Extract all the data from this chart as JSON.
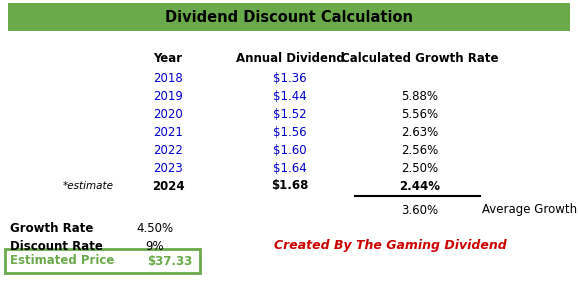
{
  "title": "Dividend Discount Calculation",
  "title_bg": "#6aaa4b",
  "title_color": "#000000",
  "header_year": "Year",
  "header_dividend": "Annual Dividend",
  "header_growth": "Calculated Growth Rate",
  "years": [
    "2018",
    "2019",
    "2020",
    "2021",
    "2022",
    "2023",
    "2024"
  ],
  "dividends": [
    "$1.36",
    "$1.44",
    "$1.52",
    "$1.56",
    "$1.60",
    "$1.64",
    "$1.68"
  ],
  "growth_rates": [
    "",
    "5.88%",
    "5.56%",
    "2.63%",
    "2.56%",
    "2.50%",
    "2.44%"
  ],
  "estimate_label": "*estimate",
  "avg_growth_value": "3.60%",
  "avg_growth_label": "Average Growth",
  "growth_rate_label": "Growth Rate",
  "growth_rate_value": "4.50%",
  "discount_rate_label": "Discount Rate",
  "discount_rate_value": "9%",
  "estimated_price_label": "Estimated Price",
  "estimated_price_value": "$37.33",
  "watermark": "Created By The Gaming Dividend",
  "watermark_color": "#cc0000",
  "year_color": "#0000cc",
  "dividend_color": "#0000cc",
  "growth_color": "#000000",
  "last_year_color": "#000000",
  "header_color": "#000000",
  "bg_color": "#ffffff",
  "title_bg_green": "#6aaa4b"
}
